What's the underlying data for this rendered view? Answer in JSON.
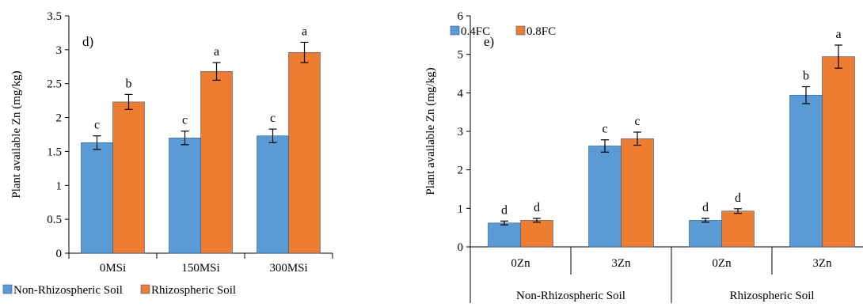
{
  "chart_data": [
    {
      "type": "bar",
      "panel_label": "d)",
      "ylabel": "Plant available Zn (mg/kg)",
      "ylim": [
        0,
        3.5
      ],
      "yticks": [
        "0",
        "0.5",
        "1",
        "1.5",
        "2",
        "2.5",
        "3",
        "3.5"
      ],
      "categories": [
        "0MSi",
        "150MSi",
        "300MSi"
      ],
      "series": [
        {
          "name": "Non-Rhizospheric Soil",
          "color": "#5b9bd5",
          "values": [
            1.63,
            1.7,
            1.73
          ],
          "errors": [
            0.1,
            0.1,
            0.1
          ],
          "letters": [
            "c",
            "c",
            "c"
          ]
        },
        {
          "name": "Rhizospheric Soil",
          "color": "#ed7d31",
          "values": [
            2.23,
            2.68,
            2.96
          ],
          "errors": [
            0.11,
            0.13,
            0.15
          ],
          "letters": [
            "b",
            "a",
            "a"
          ]
        }
      ],
      "legend_position": "bottom"
    },
    {
      "type": "bar",
      "panel_label": "e)",
      "ylabel": "Plant available Zn (mg/kg)",
      "ylim": [
        0,
        6
      ],
      "yticks": [
        "0",
        "1",
        "2",
        "3",
        "4",
        "5",
        "6"
      ],
      "categories": [
        "0Zn",
        "3Zn",
        "0Zn",
        "3Zn"
      ],
      "groups": [
        {
          "name": "Non-Rhizospheric Soil",
          "span": [
            0,
            1
          ]
        },
        {
          "name": "Rhizospheric Soil",
          "span": [
            2,
            3
          ]
        }
      ],
      "series": [
        {
          "name": "0.4FC",
          "color": "#5b9bd5",
          "values": [
            0.62,
            2.62,
            0.69,
            3.94
          ],
          "errors": [
            0.05,
            0.16,
            0.05,
            0.22
          ],
          "letters": [
            "d",
            "c",
            "d",
            "b"
          ]
        },
        {
          "name": "0.8FC",
          "color": "#ed7d31",
          "values": [
            0.69,
            2.81,
            0.93,
            4.94
          ],
          "errors": [
            0.05,
            0.17,
            0.06,
            0.3
          ],
          "letters": [
            "d",
            "c",
            "d",
            "a"
          ]
        }
      ],
      "legend_position": "top-center"
    }
  ]
}
